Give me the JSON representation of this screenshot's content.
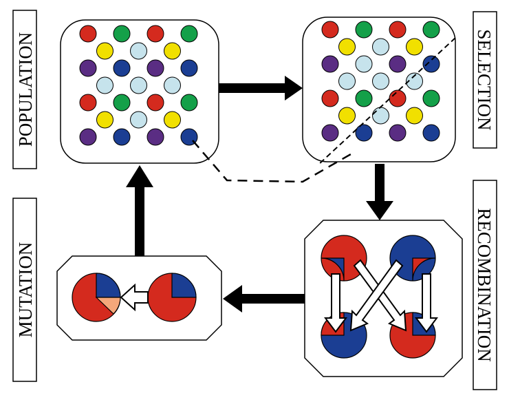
{
  "labels": {
    "population": "POPULATION",
    "selection": "SELECTION",
    "recombination": "RECOMBINATION",
    "mutation": "MUTATION"
  },
  "colors": {
    "red": "#d42a1e",
    "green": "#14a049",
    "yellow": "#f1e000",
    "lightblue": "#c6e3ec",
    "purple": "#5a2d83",
    "blue": "#1b3e93",
    "orange": "#f4a77a",
    "arrow": "#000000",
    "outline": "#000000"
  },
  "population": {
    "rows": [
      [
        "red",
        "green",
        "red",
        "green"
      ],
      [
        "yellow",
        "lightblue",
        "yellow"
      ],
      [
        "purple",
        "blue",
        "purple",
        "blue"
      ],
      [
        "lightblue",
        "lightblue",
        "lightblue"
      ],
      [
        "red",
        "green",
        "red",
        "green"
      ],
      [
        "yellow",
        "lightblue",
        "yellow"
      ],
      [
        "purple",
        "blue",
        "purple",
        "blue"
      ]
    ]
  },
  "selection": {
    "rows": [
      [
        "red",
        "green",
        "red",
        "green"
      ],
      [
        "yellow",
        "lightblue",
        "yellow"
      ],
      [
        "purple",
        "lightblue",
        "purple",
        "blue"
      ],
      [
        "lightblue",
        "lightblue",
        "lightblue"
      ],
      [
        "red",
        "green",
        "red",
        "green"
      ],
      [
        "yellow",
        "lightblue",
        "yellow"
      ],
      [
        "purple",
        "blue",
        "purple",
        "blue"
      ]
    ]
  },
  "recombination": {
    "parents": [
      "red-major",
      "blue-major"
    ],
    "offspring": [
      "blue-top-red-bottom",
      "red-top-blue-bottom"
    ]
  },
  "mutation": {
    "before": "red-with-blue-quarter",
    "after": "red-with-blue-and-orange-quarters"
  }
}
